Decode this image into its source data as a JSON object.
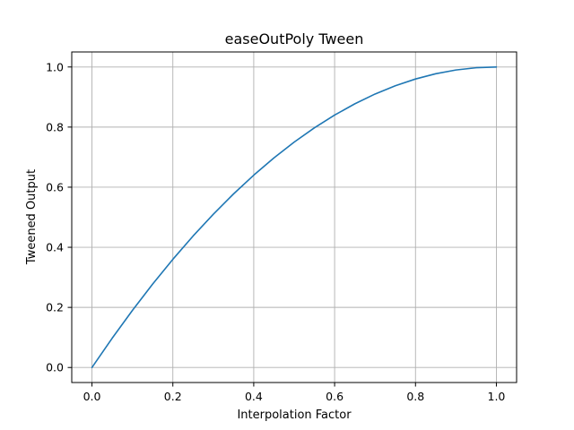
{
  "chart_data": {
    "type": "line",
    "title": "easeOutPoly Tween",
    "xlabel": "Interpolation Factor",
    "ylabel": "Tweened Output",
    "xlim": [
      -0.05,
      1.05
    ],
    "ylim": [
      -0.05,
      1.05
    ],
    "xticks": [
      0.0,
      0.2,
      0.4,
      0.6,
      0.8,
      1.0
    ],
    "xtick_labels": [
      "0.0",
      "0.2",
      "0.4",
      "0.6",
      "0.8",
      "1.0"
    ],
    "yticks": [
      0.0,
      0.2,
      0.4,
      0.6,
      0.8,
      1.0
    ],
    "ytick_labels": [
      "0.0",
      "0.2",
      "0.4",
      "0.6",
      "0.8",
      "1.0"
    ],
    "grid": true,
    "series": [
      {
        "color": "#1f77b4",
        "x": [
          0.0,
          0.05,
          0.1,
          0.15,
          0.2,
          0.25,
          0.3,
          0.35,
          0.4,
          0.45,
          0.5,
          0.55,
          0.6,
          0.65,
          0.7,
          0.75,
          0.8,
          0.85,
          0.9,
          0.95,
          1.0
        ],
        "y": [
          0.0,
          0.0975,
          0.19,
          0.2775,
          0.36,
          0.4375,
          0.51,
          0.5775,
          0.64,
          0.6975,
          0.75,
          0.7975,
          0.84,
          0.8775,
          0.91,
          0.9375,
          0.96,
          0.9775,
          0.99,
          0.9975,
          1.0
        ]
      }
    ]
  }
}
